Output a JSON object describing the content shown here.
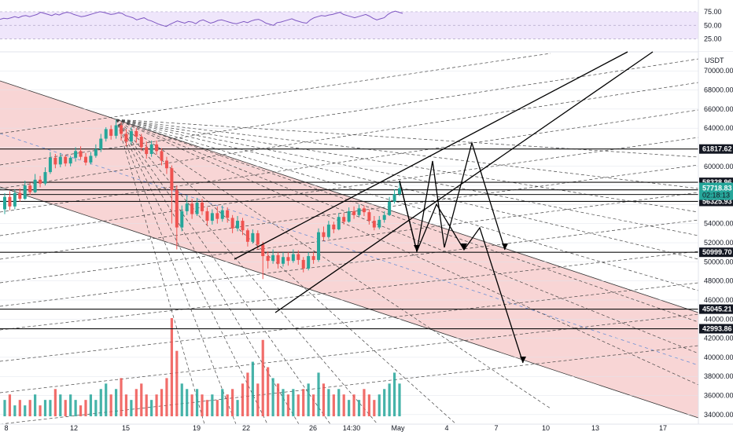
{
  "colors": {
    "up": "#26a69a",
    "down": "#ef5350",
    "channel_fill": "#f6c7c7",
    "rsi_line": "#7e57c2",
    "rsi_band": "#efe6fb",
    "price_tag": "#26a69a",
    "grid": "#e0e3eb"
  },
  "rsi": {
    "levels": [
      "75.00",
      "50.00",
      "25.00"
    ],
    "values": [
      61,
      63,
      62,
      64,
      66,
      64,
      67,
      68,
      66,
      68,
      70,
      74,
      72,
      70,
      68,
      71,
      69,
      72,
      74,
      73,
      70,
      68,
      66,
      67,
      69,
      71,
      73,
      75,
      74,
      72,
      70,
      71,
      73,
      72,
      68,
      66,
      64,
      60,
      62,
      64,
      60,
      58,
      55,
      52,
      50,
      48,
      52,
      55,
      58,
      56,
      54,
      57,
      56,
      53,
      58,
      60,
      57,
      54,
      56,
      59,
      60,
      58,
      56,
      54,
      53,
      55,
      57,
      55,
      58,
      60,
      61,
      58,
      54,
      52,
      50,
      55,
      56,
      58,
      60,
      62,
      59,
      57,
      55,
      54,
      60,
      64,
      66,
      68,
      67,
      69,
      70,
      72,
      74,
      70,
      68,
      66,
      64,
      66,
      68,
      70,
      67,
      63,
      60,
      62,
      64,
      70,
      74,
      76,
      74,
      72
    ]
  },
  "chart_data": {
    "type": "candlestick",
    "title": "",
    "quote_currency": "USDT",
    "x_ticks": [
      "8",
      "12",
      "15",
      "19",
      "22",
      "26",
      "14:30",
      "May",
      "4",
      "7",
      "10",
      "13",
      "17"
    ],
    "y_ticks": [
      34000,
      36000,
      38000,
      40000,
      42000,
      44000,
      46000,
      48000,
      50000,
      52000,
      54000,
      56000,
      58000,
      60000,
      62000,
      64000,
      66000,
      68000,
      70000
    ],
    "ylim": [
      33000,
      71500
    ],
    "grid": true,
    "legend": "none",
    "current_price": 57718.83,
    "countdown": "02:18:13",
    "horizontal_levels": [
      61817.62,
      58328.96,
      57540.34,
      57051.2,
      56325.93,
      50999.7,
      45045.21,
      42993.86
    ],
    "candles": [
      [
        55500,
        56800,
        55000,
        57200
      ],
      [
        56800,
        55800,
        55400,
        57400
      ],
      [
        55800,
        57200,
        55500,
        57600
      ],
      [
        57200,
        56600,
        56300,
        57700
      ],
      [
        56600,
        58000,
        56500,
        58500
      ],
      [
        58000,
        57300,
        57000,
        58300
      ],
      [
        57300,
        58600,
        57200,
        59200
      ],
      [
        58600,
        58200,
        57800,
        59000
      ],
      [
        58200,
        59400,
        58000,
        59900
      ],
      [
        59400,
        60900,
        59200,
        61500
      ],
      [
        60900,
        60200,
        59800,
        61300
      ],
      [
        60200,
        61000,
        59900,
        61400
      ],
      [
        61000,
        60300,
        60000,
        61200
      ],
      [
        60300,
        60900,
        60000,
        61100
      ],
      [
        60900,
        61600,
        60500,
        62000
      ],
      [
        61600,
        61000,
        60700,
        62100
      ],
      [
        61000,
        60400,
        60100,
        61400
      ],
      [
        60400,
        61100,
        60200,
        61500
      ],
      [
        61100,
        61800,
        60900,
        62300
      ],
      [
        61800,
        62900,
        61500,
        63400
      ],
      [
        62900,
        63900,
        62600,
        64100
      ],
      [
        63900,
        63200,
        62800,
        64300
      ],
      [
        63200,
        64300,
        62900,
        64900
      ],
      [
        64300,
        63400,
        62700,
        64600
      ],
      [
        63400,
        62600,
        62100,
        63900
      ],
      [
        62600,
        63700,
        62300,
        64100
      ],
      [
        63700,
        63100,
        62500,
        64000
      ],
      [
        63100,
        62000,
        61600,
        63400
      ],
      [
        62000,
        61300,
        60800,
        62600
      ],
      [
        61300,
        62300,
        61000,
        62700
      ],
      [
        62300,
        61600,
        61200,
        62700
      ],
      [
        61600,
        60600,
        60100,
        61900
      ],
      [
        60600,
        59800,
        59200,
        61000
      ],
      [
        59800,
        57500,
        54000,
        60100
      ],
      [
        57500,
        53600,
        51300,
        58000
      ],
      [
        53600,
        55300,
        53200,
        55900
      ],
      [
        55300,
        56100,
        54900,
        56900
      ],
      [
        56100,
        55000,
        54500,
        56600
      ],
      [
        55000,
        56200,
        54800,
        56700
      ],
      [
        56200,
        55300,
        54900,
        56600
      ],
      [
        55300,
        54300,
        53800,
        55700
      ],
      [
        54300,
        55100,
        53900,
        55500
      ],
      [
        55100,
        54500,
        54000,
        55800
      ],
      [
        54500,
        55400,
        54200,
        55900
      ],
      [
        55400,
        54600,
        54100,
        55700
      ],
      [
        54600,
        53500,
        53000,
        54900
      ],
      [
        53500,
        54300,
        53200,
        54800
      ],
      [
        54300,
        53300,
        52800,
        54600
      ],
      [
        53300,
        52100,
        51600,
        53500
      ],
      [
        52100,
        53000,
        51900,
        53400
      ],
      [
        53000,
        51800,
        51300,
        53300
      ],
      [
        51800,
        50600,
        48200,
        52100
      ],
      [
        50600,
        50100,
        49300,
        51100
      ],
      [
        50100,
        50700,
        49800,
        51300
      ],
      [
        50700,
        49800,
        49300,
        51000
      ],
      [
        49800,
        50500,
        49500,
        51000
      ],
      [
        50500,
        50100,
        49600,
        51000
      ],
      [
        50100,
        50800,
        49900,
        51300
      ],
      [
        50800,
        50200,
        49700,
        51200
      ],
      [
        50200,
        49300,
        48900,
        50500
      ],
      [
        49300,
        50600,
        49100,
        51000
      ],
      [
        50600,
        50200,
        49800,
        51000
      ],
      [
        50200,
        53100,
        50000,
        53500
      ],
      [
        53100,
        52600,
        52200,
        53700
      ],
      [
        52600,
        53900,
        52400,
        54300
      ],
      [
        53900,
        53400,
        53000,
        54200
      ],
      [
        53400,
        54700,
        53300,
        55100
      ],
      [
        54700,
        54200,
        53900,
        55100
      ],
      [
        54200,
        55300,
        54100,
        55700
      ],
      [
        55300,
        54900,
        54500,
        55800
      ],
      [
        54900,
        55600,
        54700,
        56000
      ],
      [
        55600,
        55200,
        54800,
        55900
      ],
      [
        55200,
        54300,
        53900,
        55500
      ],
      [
        54300,
        53600,
        53300,
        54800
      ],
      [
        53600,
        54400,
        53400,
        54800
      ],
      [
        54400,
        54900,
        54100,
        55300
      ],
      [
        54900,
        56300,
        54800,
        56800
      ],
      [
        56300,
        57100,
        56100,
        57600
      ],
      [
        57100,
        57700,
        56900,
        58400
      ]
    ],
    "volume": [
      3,
      4,
      2,
      3,
      2,
      3,
      4,
      2,
      3,
      3,
      5,
      4,
      3,
      4,
      3,
      2,
      3,
      4,
      3,
      5,
      6,
      4,
      5,
      7,
      4,
      3,
      5,
      6,
      4,
      3,
      4,
      5,
      7,
      18,
      12,
      6,
      5,
      4,
      5,
      4,
      3,
      4,
      3,
      5,
      4,
      5,
      3,
      6,
      8,
      10,
      6,
      14,
      9,
      7,
      6,
      5,
      4,
      5,
      4,
      5,
      6,
      4,
      8,
      6,
      5,
      4,
      5,
      4,
      3,
      4,
      3,
      5,
      4,
      3,
      4,
      5,
      6,
      8,
      6
    ]
  }
}
